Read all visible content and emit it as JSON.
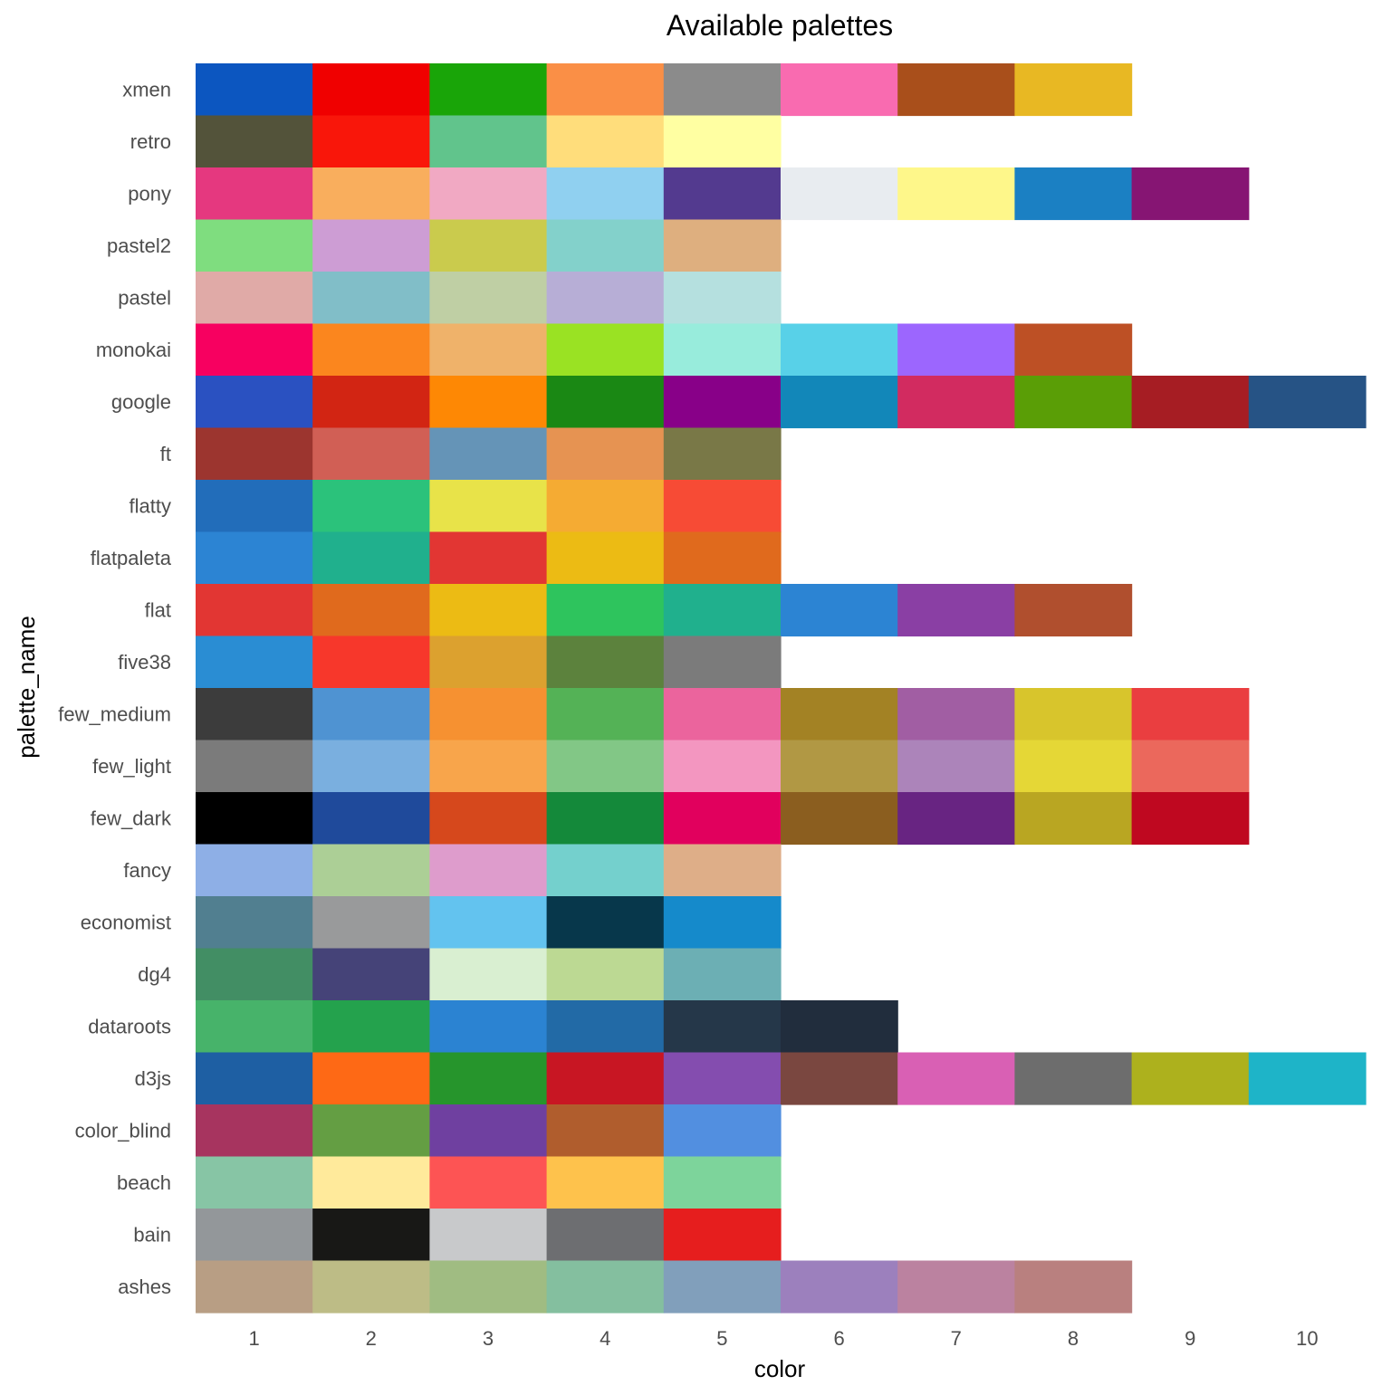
{
  "chart_data": {
    "type": "heatmap",
    "title": "Available palettes",
    "xlabel": "color",
    "ylabel": "palette_name",
    "x_categories": [
      "1",
      "2",
      "3",
      "4",
      "5",
      "6",
      "7",
      "8",
      "9",
      "10"
    ],
    "grid": false,
    "legend": "none",
    "palettes": [
      {
        "name": "xmen",
        "colors": [
          "#0c56c0",
          "#f00000",
          "#19a508",
          "#fa8f46",
          "#8b8b8b",
          "#f96bb0",
          "#a94f1b",
          "#e8b823"
        ]
      },
      {
        "name": "retro",
        "colors": [
          "#53533a",
          "#f9160a",
          "#61c48c",
          "#ffdd7b",
          "#ffffa2"
        ]
      },
      {
        "name": "pony",
        "colors": [
          "#e5387f",
          "#f9ae5d",
          "#f1a9c3",
          "#90d0f0",
          "#533a8f",
          "#e8ecf0",
          "#fef78a",
          "#1b80c3",
          "#861573"
        ]
      },
      {
        "name": "pastel2",
        "colors": [
          "#7fdd7f",
          "#cd9dd4",
          "#cacb4d",
          "#83d1cb",
          "#deaf7f"
        ]
      },
      {
        "name": "pastel",
        "colors": [
          "#e0aaa7",
          "#81bec8",
          "#bfcfa4",
          "#b7aed6",
          "#b5e0df"
        ]
      },
      {
        "name": "monokai",
        "colors": [
          "#f70060",
          "#fb861e",
          "#efb26a",
          "#9ae223",
          "#98ecdc",
          "#58d1e8",
          "#9c66fe",
          "#bd5025"
        ]
      },
      {
        "name": "google",
        "colors": [
          "#2a51c1",
          "#d22513",
          "#fe8804",
          "#1a8814",
          "#880088",
          "#1287b9",
          "#d22b60",
          "#5a9e06",
          "#a61d23",
          "#265385"
        ]
      },
      {
        "name": "ft",
        "colors": [
          "#9c352f",
          "#d15f55",
          "#6594b7",
          "#e69352",
          "#797847"
        ]
      },
      {
        "name": "flatty",
        "colors": [
          "#226dba",
          "#2bc27b",
          "#e8e349",
          "#f5ab33",
          "#f74b35"
        ]
      },
      {
        "name": "flatpaleta",
        "colors": [
          "#2c84d3",
          "#20b08d",
          "#e23633",
          "#ecbb14",
          "#e06a1d"
        ]
      },
      {
        "name": "flat",
        "colors": [
          "#e23633",
          "#e06a1d",
          "#ecbb14",
          "#2ec45d",
          "#20b08d",
          "#2c84d3",
          "#8a3fa4",
          "#b04f2e"
        ]
      },
      {
        "name": "five38",
        "colors": [
          "#2a8dd3",
          "#f7372b",
          "#dca12f",
          "#5c823d",
          "#7b7b7b"
        ]
      },
      {
        "name": "few_medium",
        "colors": [
          "#3c3c3c",
          "#4f93d2",
          "#f69131",
          "#54b256",
          "#eb649d",
          "#a38224",
          "#a15ea3",
          "#d8c52c",
          "#ea3e40"
        ]
      },
      {
        "name": "few_light",
        "colors": [
          "#7b7b7b",
          "#7aafdf",
          "#f8a54b",
          "#82c786",
          "#f396c0",
          "#b19844",
          "#ac84ba",
          "#e5d736",
          "#eb685c"
        ]
      },
      {
        "name": "few_dark",
        "colors": [
          "#000000",
          "#1f4a9b",
          "#d6481c",
          "#14893a",
          "#e1005d",
          "#8b5e1f",
          "#682482",
          "#b9a622",
          "#bf0820"
        ]
      },
      {
        "name": "fancy",
        "colors": [
          "#8eafe6",
          "#accf96",
          "#de9ccc",
          "#74d0cd",
          "#deae88"
        ]
      },
      {
        "name": "economist",
        "colors": [
          "#517f90",
          "#999a9b",
          "#63c3ef",
          "#07374b",
          "#158acb"
        ]
      },
      {
        "name": "dg4",
        "colors": [
          "#428e64",
          "#454378",
          "#d9efd1",
          "#bcd993",
          "#6cafb4"
        ]
      },
      {
        "name": "dataroots",
        "colors": [
          "#47b36a",
          "#24a24d",
          "#2b83d2",
          "#226aa6",
          "#253749",
          "#212d3d"
        ]
      },
      {
        "name": "d3js",
        "colors": [
          "#1e5fa3",
          "#fe6915",
          "#26952c",
          "#c81623",
          "#844daf",
          "#7a4740",
          "#d960b4",
          "#6d6d6d",
          "#adb11d",
          "#1eb4c8"
        ]
      },
      {
        "name": "color_blind",
        "colors": [
          "#a7345f",
          "#649e43",
          "#6f40a0",
          "#b05d2d",
          "#528fe0"
        ]
      },
      {
        "name": "beach",
        "colors": [
          "#87c5a5",
          "#ffea9b",
          "#fd5454",
          "#fec24c",
          "#7dd49b"
        ]
      },
      {
        "name": "bain",
        "colors": [
          "#93979a",
          "#181816",
          "#c8c9cb",
          "#6d6e71",
          "#e61e1e"
        ]
      },
      {
        "name": "ashes",
        "colors": [
          "#b89e84",
          "#bdbc86",
          "#a0bc82",
          "#84bf9f",
          "#819fbb",
          "#9c80bd",
          "#bb82a0",
          "#b9807f"
        ]
      }
    ]
  }
}
